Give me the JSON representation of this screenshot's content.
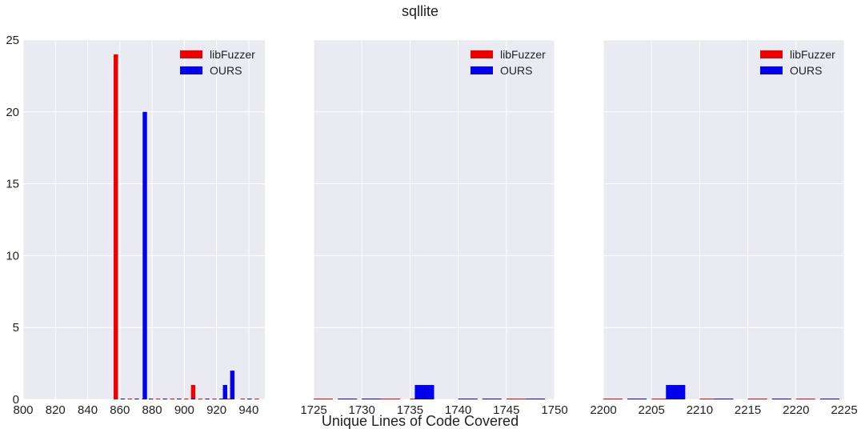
{
  "chart_data": {
    "type": "bar",
    "title": "sqllite",
    "xlabel": "Unique Lines of Code Covered",
    "ylabel": "",
    "ylim": [
      0,
      25
    ],
    "yticks": [
      0,
      5,
      10,
      15,
      20,
      25
    ],
    "grid": true,
    "shared_y": true,
    "legend_placement": "top-right",
    "series_styles": [
      {
        "name": "libFuzzer",
        "color": "#ee0000"
      },
      {
        "name": "OURS",
        "color": "#0000ee"
      }
    ],
    "panels": [
      {
        "xlim": [
          800,
          950
        ],
        "xticks": [
          800,
          820,
          840,
          860,
          880,
          900,
          920,
          940
        ],
        "bar_width": 2.7,
        "series": [
          {
            "name": "libFuzzer",
            "x": [
              857.5,
              866.2,
              875.0,
              883.7,
              892.5,
              901.2,
              905.5,
              910.0,
              918.7,
              927.5,
              936.2,
              945.0
            ],
            "values": [
              24,
              0,
              0,
              0,
              0,
              0,
              1,
              0,
              0,
              0,
              0,
              0
            ]
          },
          {
            "name": "OURS",
            "x": [
              861.8,
              870.5,
              875.5,
              879.3,
              888.0,
              896.8,
              905.5,
              914.3,
              923.0,
              925.3,
              929.8,
              940.5
            ],
            "values": [
              0,
              0,
              20,
              0,
              0,
              0,
              0,
              0,
              0,
              1,
              2,
              0
            ]
          }
        ]
      },
      {
        "xlim": [
          1725,
          1750
        ],
        "xticks": [
          1725,
          1730,
          1735,
          1740,
          1745,
          1750
        ],
        "bar_width": 2.0,
        "series": [
          {
            "name": "libFuzzer",
            "x": [
              1726,
              1731,
              1733,
              1736,
              1741,
              1746
            ],
            "values": [
              0,
              0,
              0,
              0,
              0,
              0
            ]
          },
          {
            "name": "OURS",
            "x": [
              1728.5,
              1731,
              1736.5,
              1741,
              1743.5,
              1748
            ],
            "values": [
              0,
              0,
              1,
              0,
              0,
              0
            ]
          }
        ]
      },
      {
        "xlim": [
          2200,
          2225
        ],
        "xticks": [
          2200,
          2205,
          2210,
          2215,
          2220,
          2225
        ],
        "bar_width": 2.0,
        "series": [
          {
            "name": "libFuzzer",
            "x": [
              2201,
              2206,
              2211,
              2216,
              2221
            ],
            "values": [
              0,
              0,
              0,
              0,
              0
            ]
          },
          {
            "name": "OURS",
            "x": [
              2203.5,
              2207.5,
              2212.5,
              2218.5,
              2223.5
            ],
            "values": [
              0,
              1,
              0,
              0,
              0
            ]
          }
        ]
      }
    ]
  }
}
